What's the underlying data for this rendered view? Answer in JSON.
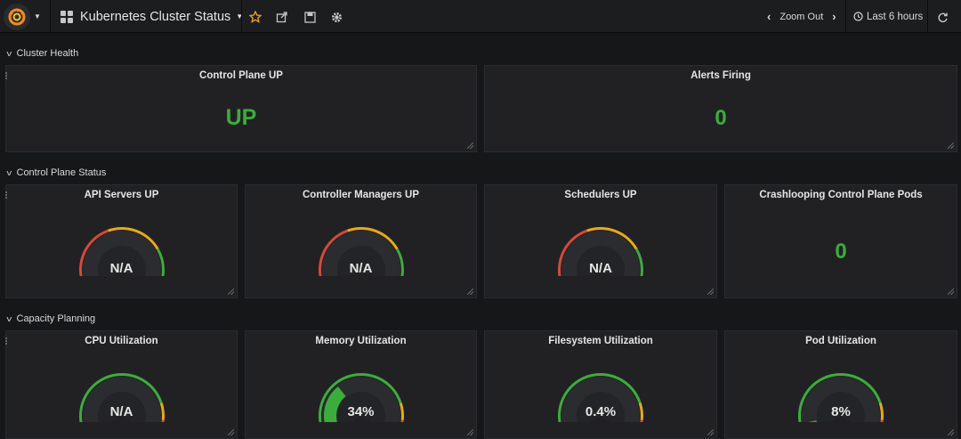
{
  "navbar": {
    "dashboard_title": "Kubernetes Cluster Status",
    "zoom_out_label": "Zoom Out",
    "time_range_label": "Last 6 hours"
  },
  "rows": [
    {
      "title": "Cluster Health"
    },
    {
      "title": "Control Plane Status"
    },
    {
      "title": "Capacity Planning"
    }
  ],
  "cluster_health": {
    "control_plane": {
      "title": "Control Plane UP",
      "value": "UP"
    },
    "alerts": {
      "title": "Alerts Firing",
      "value": "0"
    }
  },
  "control_plane_status": {
    "api_servers": {
      "title": "API Servers UP",
      "value": "N/A"
    },
    "controller_managers": {
      "title": "Controller Managers UP",
      "value": "N/A"
    },
    "schedulers": {
      "title": "Schedulers UP",
      "value": "N/A"
    },
    "crashlooping": {
      "title": "Crashlooping Control Plane Pods",
      "value": "0"
    }
  },
  "capacity_planning": {
    "cpu": {
      "title": "CPU Utilization",
      "value": "N/A",
      "fill": 0
    },
    "memory": {
      "title": "Memory Utilization",
      "value": "34%",
      "fill": 0.34
    },
    "filesystem": {
      "title": "Filesystem Utilization",
      "value": "0.4%",
      "fill": 0.004
    },
    "pods": {
      "title": "Pod Utilization",
      "value": "8%",
      "fill": 0.08
    }
  },
  "colors": {
    "ok": "#3bad3b",
    "warn": "#e5ac0e",
    "bad": "#d44a3a",
    "gauge_bg": "#2b2c2f",
    "gauge_inner": "#232427"
  },
  "icons": {
    "logo": "grafana-logo-icon",
    "star": "star-icon",
    "share": "share-icon",
    "save": "save-icon",
    "settings": "gear-icon",
    "zoom_prev": "chevron-left-icon",
    "zoom_next": "chevron-right-icon",
    "clock": "clock-icon",
    "refresh": "refresh-icon"
  }
}
